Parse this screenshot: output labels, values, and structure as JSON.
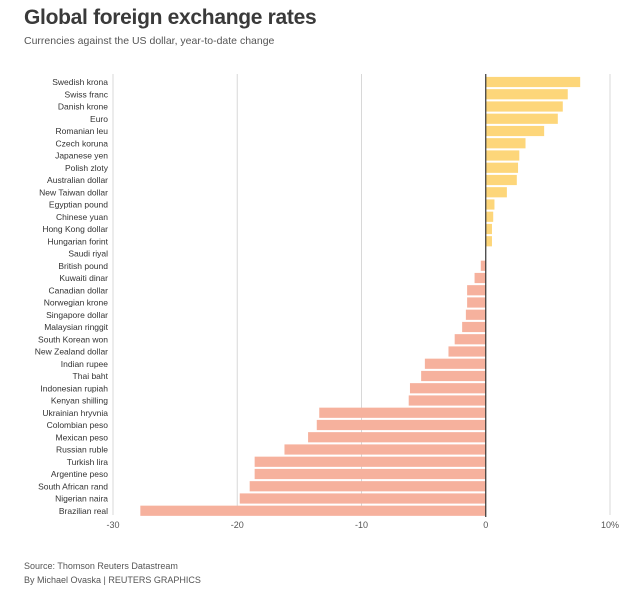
{
  "title": "Global foreign exchange rates",
  "subtitle": "Currencies against the US dollar, year-to-date change",
  "footer": {
    "source": "Source: Thomson Reuters Datastream",
    "byline": "By Michael Ovaska | REUTERS GRAPHICS"
  },
  "chart_data": {
    "type": "bar",
    "orientation": "horizontal",
    "title": "Global foreign exchange rates",
    "subtitle": "Currencies against the US dollar, year-to-date change",
    "xlabel": "",
    "ylabel": "",
    "xlim": [
      -30,
      10
    ],
    "x_ticks": [
      -30,
      -20,
      -10,
      0,
      10
    ],
    "x_tick_labels": [
      "-30",
      "-20",
      "-10",
      "0",
      "10%"
    ],
    "grid": true,
    "colors": {
      "positive": "#fdd67a",
      "negative": "#f6b19d",
      "grid": "#d8d8d8",
      "zero_line": "#333333"
    },
    "categories": [
      "Swedish krona",
      "Swiss franc",
      "Danish krone",
      "Euro",
      "Romanian leu",
      "Czech koruna",
      "Japanese yen",
      "Polish zloty",
      "Australian dollar",
      "New Taiwan dollar",
      "Egyptian pound",
      "Chinese yuan",
      "Hong Kong dollar",
      "Hungarian forint",
      "Saudi riyal",
      "British pound",
      "Kuwaiti dinar",
      "Canadian dollar",
      "Norwegian krone",
      "Singapore dollar",
      "Malaysian ringgit",
      "South Korean won",
      "New Zealand dollar",
      "Indian rupee",
      "Thai baht",
      "Indonesian rupiah",
      "Kenyan shilling",
      "Ukrainian hryvnia",
      "Colombian peso",
      "Mexican peso",
      "Russian ruble",
      "Turkish lira",
      "Argentine peso",
      "South African rand",
      "Nigerian naira",
      "Brazilian real"
    ],
    "values": [
      7.6,
      6.6,
      6.2,
      5.8,
      4.7,
      3.2,
      2.7,
      2.6,
      2.5,
      1.7,
      0.7,
      0.6,
      0.5,
      0.5,
      0.0,
      -0.4,
      -0.9,
      -1.5,
      -1.5,
      -1.6,
      -1.9,
      -2.5,
      -3.0,
      -4.9,
      -5.2,
      -6.1,
      -6.2,
      -13.4,
      -13.6,
      -14.3,
      -16.2,
      -18.6,
      -18.6,
      -19.0,
      -19.8,
      -27.8
    ]
  }
}
